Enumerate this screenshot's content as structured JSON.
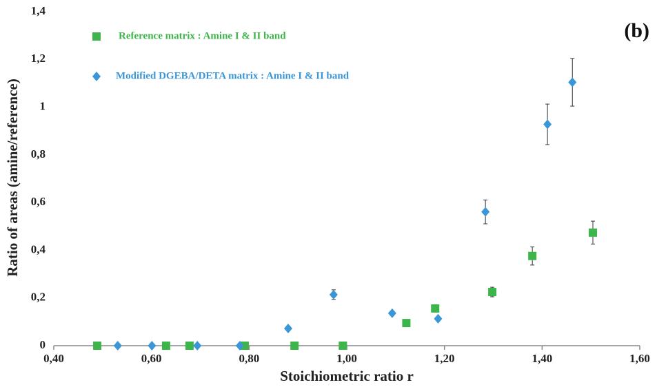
{
  "chart_data": {
    "type": "scatter",
    "annotation": "(b)",
    "x_label": "Stoichiometric ratio r",
    "y_label": "Ratio of areas (amine/reference)",
    "xlim": [
      0.4,
      1.6
    ],
    "xticks": [
      {
        "value": 0.4,
        "label": "0,40"
      },
      {
        "value": 0.6,
        "label": "0,60"
      },
      {
        "value": 0.8,
        "label": "0,80"
      },
      {
        "value": 1.0,
        "label": "1,00"
      },
      {
        "value": 1.2,
        "label": "1,20"
      },
      {
        "value": 1.4,
        "label": "1,40"
      },
      {
        "value": 1.6,
        "label": "1,60"
      }
    ],
    "ylim": [
      0,
      1.4
    ],
    "yticks": [
      0,
      {
        "value": 0.2,
        "label": "0,2"
      },
      {
        "value": 0.4,
        "label": "0,4"
      },
      {
        "value": 0.6,
        "label": "0,6"
      },
      {
        "value": 0.8,
        "label": "0,8"
      },
      1,
      {
        "value": 1.2,
        "label": "1,2"
      },
      {
        "value": 1.4,
        "label": "1,4"
      }
    ],
    "series": [
      {
        "name": "Reference matrix : Amine I & II band",
        "color": "#3db54a",
        "marker": "square",
        "x": [
          0.489,
          0.63,
          0.678,
          0.791,
          0.893,
          0.992,
          1.122,
          1.181,
          1.298,
          1.38,
          1.504
        ],
        "values": [
          0,
          0,
          0,
          0,
          0,
          0,
          0.095,
          0.156,
          0.225,
          0.376,
          0.474
        ],
        "errors": [
          null,
          null,
          null,
          null,
          null,
          null,
          null,
          null,
          0.02,
          0.038,
          0.048
        ]
      },
      {
        "name": "Modified DGEBA/DETA matrix : Amine I & II band",
        "color": "#3a96d6",
        "marker": "diamond",
        "x": [
          0.531,
          0.601,
          0.694,
          0.781,
          0.88,
          0.973,
          1.093,
          1.187,
          1.284,
          1.411,
          1.462
        ],
        "values": [
          0,
          0,
          0,
          0,
          0.072,
          0.214,
          0.136,
          0.113,
          0.561,
          0.928,
          1.104
        ],
        "errors": [
          null,
          null,
          null,
          null,
          null,
          0.02,
          null,
          null,
          0.05,
          0.085,
          0.1
        ]
      }
    ]
  }
}
